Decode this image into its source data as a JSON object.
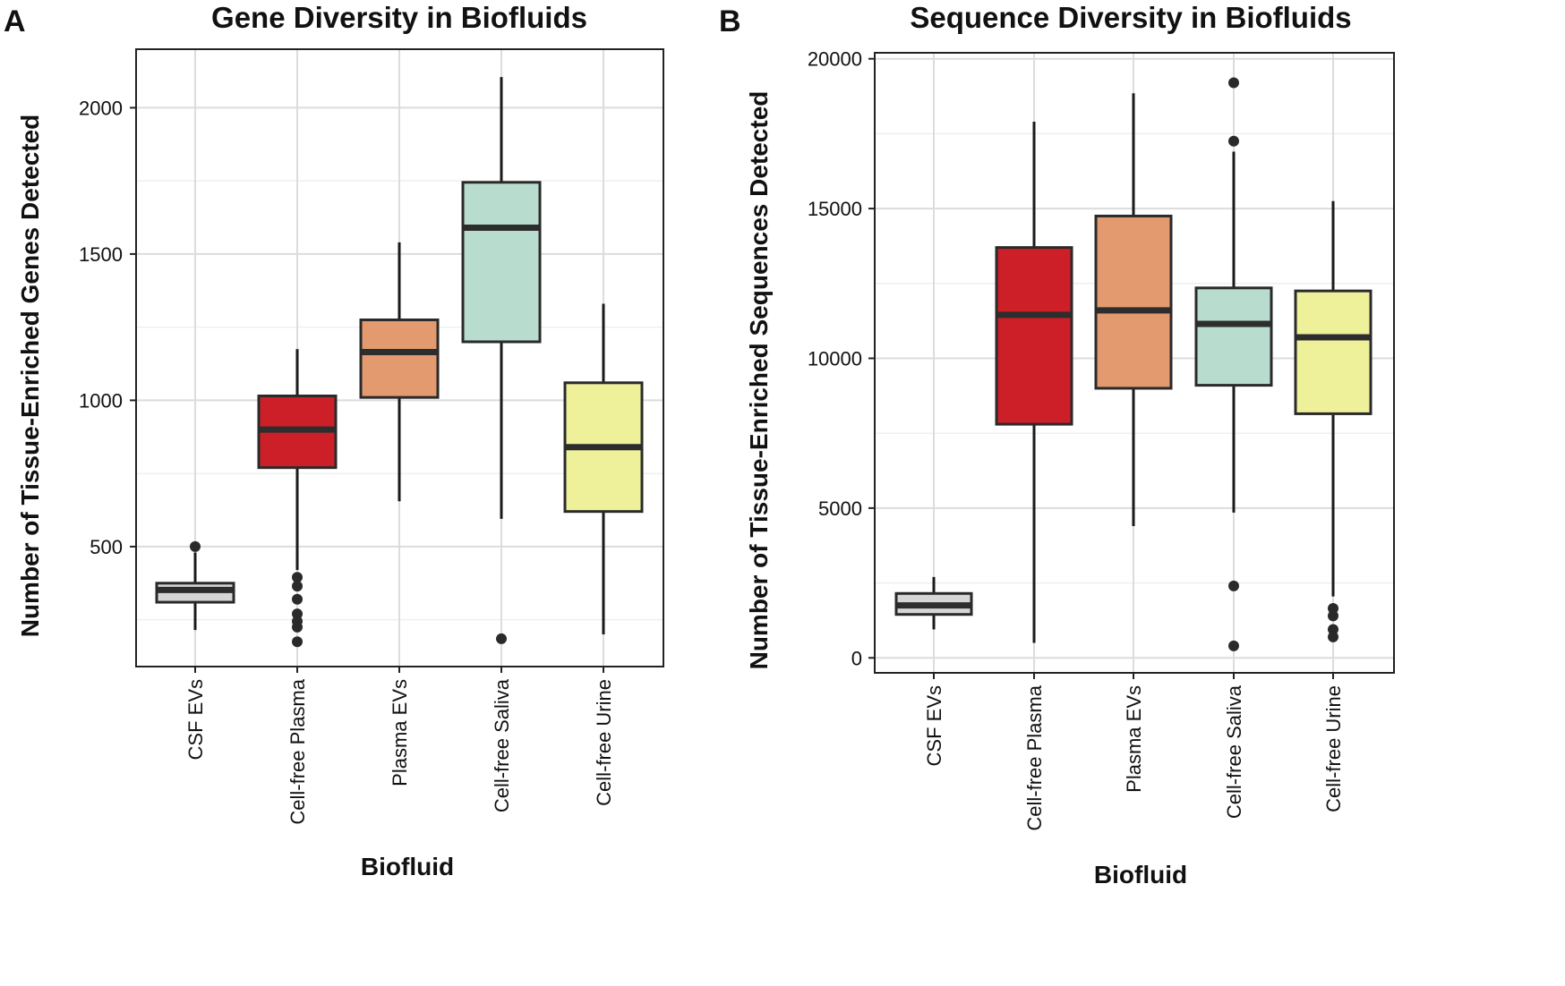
{
  "chart_data": [
    {
      "panel": "A",
      "type": "box",
      "title": "Gene Diversity in Biofluids",
      "xlabel": "Biofluid",
      "ylabel": "Number of Tissue-Enriched Genes Detected",
      "ylim": [
        90,
        2200
      ],
      "yticks": [
        500,
        1000,
        1500,
        2000
      ],
      "ytick_labels": [
        "500",
        "1000",
        "1500",
        "2000"
      ],
      "grid": true,
      "categories": [
        "CSF EVs",
        "Cell-free Plasma",
        "Plasma EVs",
        "Cell-free Saliva",
        "Cell-free Urine"
      ],
      "colors": [
        "#d6d6d6",
        "#cc1f28",
        "#e39a6e",
        "#b8dccd",
        "#eef09a"
      ],
      "boxes": [
        {
          "whisker_low": 215,
          "q1": 310,
          "median": 352,
          "q3": 375,
          "whisker_high": 480,
          "outliers": [
            500
          ]
        },
        {
          "whisker_low": 420,
          "q1": 770,
          "median": 900,
          "q3": 1015,
          "whisker_high": 1175,
          "outliers": [
            175,
            225,
            245,
            270,
            320,
            365,
            395
          ]
        },
        {
          "whisker_low": 655,
          "q1": 1010,
          "median": 1165,
          "q3": 1275,
          "whisker_high": 1540,
          "outliers": []
        },
        {
          "whisker_low": 595,
          "q1": 1200,
          "median": 1590,
          "q3": 1745,
          "whisker_high": 2105,
          "outliers": [
            185
          ]
        },
        {
          "whisker_low": 200,
          "q1": 620,
          "median": 840,
          "q3": 1060,
          "whisker_high": 1330,
          "outliers": []
        }
      ]
    },
    {
      "panel": "B",
      "type": "box",
      "title": "Sequence Diversity in Biofluids",
      "xlabel": "Biofluid",
      "ylabel": "Number of Tissue-Enriched Sequences Detected",
      "ylim": [
        -500,
        20200
      ],
      "yticks": [
        0,
        5000,
        10000,
        15000,
        20000
      ],
      "ytick_labels": [
        "0",
        "5000",
        "10000",
        "15000",
        "20000"
      ],
      "grid": true,
      "categories": [
        "CSF EVs",
        "Cell-free Plasma",
        "Plasma EVs",
        "Cell-free Saliva",
        "Cell-free Urine"
      ],
      "colors": [
        "#d6d6d6",
        "#cc1f28",
        "#e39a6e",
        "#b8dccd",
        "#eef09a"
      ],
      "boxes": [
        {
          "whisker_low": 950,
          "q1": 1450,
          "median": 1750,
          "q3": 2150,
          "whisker_high": 2700,
          "outliers": []
        },
        {
          "whisker_low": 500,
          "q1": 7800,
          "median": 11450,
          "q3": 13700,
          "whisker_high": 17900,
          "outliers": []
        },
        {
          "whisker_low": 4400,
          "q1": 9000,
          "median": 11600,
          "q3": 14750,
          "whisker_high": 18850,
          "outliers": []
        },
        {
          "whisker_low": 4850,
          "q1": 9100,
          "median": 11150,
          "q3": 12350,
          "whisker_high": 16900,
          "outliers": [
            400,
            2400,
            17250,
            19200
          ]
        },
        {
          "whisker_low": 2050,
          "q1": 8150,
          "median": 10700,
          "q3": 12250,
          "whisker_high": 15250,
          "outliers": [
            700,
            950,
            1400,
            1650
          ]
        }
      ]
    }
  ]
}
